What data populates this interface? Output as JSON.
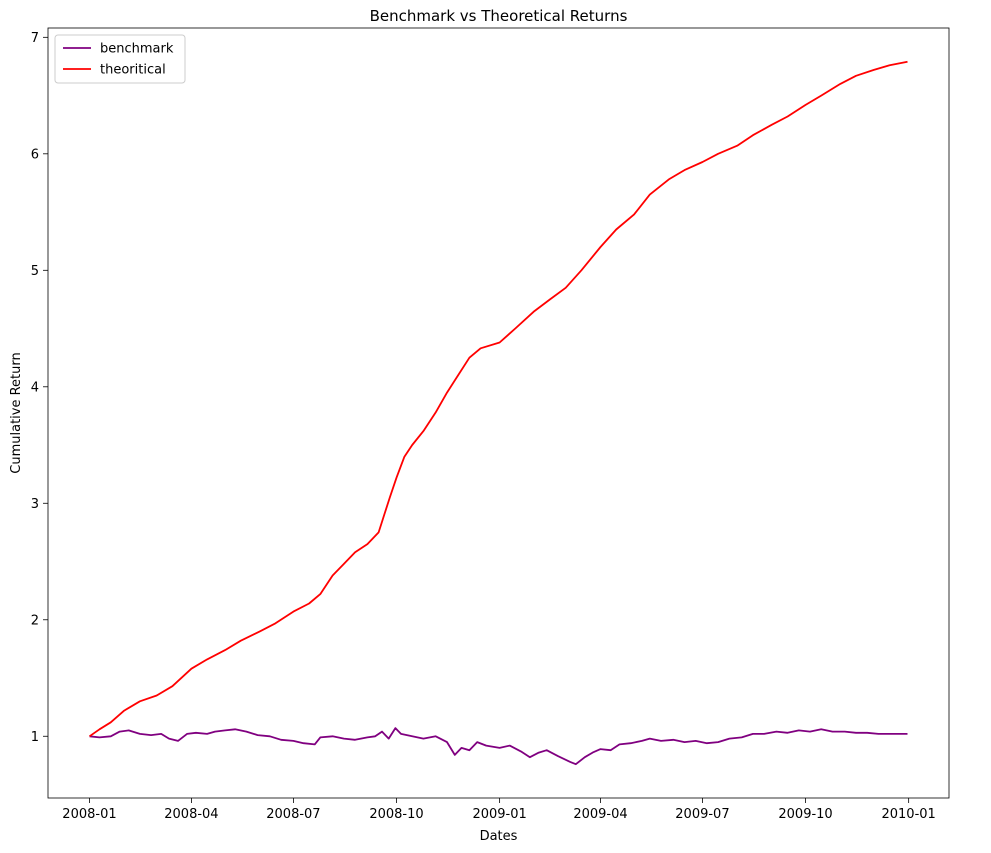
{
  "chart_data": {
    "type": "line",
    "title": "Benchmark vs Theoretical Returns",
    "xlabel": "Dates",
    "ylabel": "Cumulative Return",
    "x_axis": "date",
    "xlim": [
      "2007-11-25",
      "2010-02-06"
    ],
    "ylim": [
      0.47,
      7.08
    ],
    "x_ticks": [
      "2008-01",
      "2008-04",
      "2008-07",
      "2008-10",
      "2009-01",
      "2009-04",
      "2009-07",
      "2009-10",
      "2010-01"
    ],
    "y_ticks": [
      1,
      2,
      3,
      4,
      5,
      6,
      7
    ],
    "grid": false,
    "legend_position": "top-left",
    "series": [
      {
        "name": "benchmark",
        "color": "#800080",
        "points": [
          [
            "2008-01-01",
            1.0
          ],
          [
            "2008-01-10",
            0.99
          ],
          [
            "2008-01-20",
            1.0
          ],
          [
            "2008-01-28",
            1.04
          ],
          [
            "2008-02-05",
            1.05
          ],
          [
            "2008-02-15",
            1.02
          ],
          [
            "2008-02-25",
            1.01
          ],
          [
            "2008-03-05",
            1.02
          ],
          [
            "2008-03-12",
            0.98
          ],
          [
            "2008-03-20",
            0.96
          ],
          [
            "2008-03-28",
            1.02
          ],
          [
            "2008-04-05",
            1.03
          ],
          [
            "2008-04-15",
            1.02
          ],
          [
            "2008-04-22",
            1.04
          ],
          [
            "2008-05-01",
            1.05
          ],
          [
            "2008-05-10",
            1.06
          ],
          [
            "2008-05-20",
            1.04
          ],
          [
            "2008-05-30",
            1.01
          ],
          [
            "2008-06-10",
            1.0
          ],
          [
            "2008-06-20",
            0.97
          ],
          [
            "2008-07-01",
            0.96
          ],
          [
            "2008-07-10",
            0.94
          ],
          [
            "2008-07-20",
            0.93
          ],
          [
            "2008-07-25",
            0.99
          ],
          [
            "2008-08-05",
            1.0
          ],
          [
            "2008-08-15",
            0.98
          ],
          [
            "2008-08-25",
            0.97
          ],
          [
            "2008-09-05",
            0.99
          ],
          [
            "2008-09-12",
            1.0
          ],
          [
            "2008-09-18",
            1.04
          ],
          [
            "2008-09-24",
            0.98
          ],
          [
            "2008-09-30",
            1.07
          ],
          [
            "2008-10-05",
            1.02
          ],
          [
            "2008-10-15",
            1.0
          ],
          [
            "2008-10-25",
            0.98
          ],
          [
            "2008-11-05",
            1.0
          ],
          [
            "2008-11-15",
            0.95
          ],
          [
            "2008-11-22",
            0.84
          ],
          [
            "2008-11-28",
            0.9
          ],
          [
            "2008-12-05",
            0.88
          ],
          [
            "2008-12-12",
            0.95
          ],
          [
            "2008-12-20",
            0.92
          ],
          [
            "2009-01-01",
            0.9
          ],
          [
            "2009-01-10",
            0.92
          ],
          [
            "2009-01-20",
            0.87
          ],
          [
            "2009-01-28",
            0.82
          ],
          [
            "2009-02-05",
            0.86
          ],
          [
            "2009-02-12",
            0.88
          ],
          [
            "2009-02-22",
            0.83
          ],
          [
            "2009-03-05",
            0.78
          ],
          [
            "2009-03-10",
            0.76
          ],
          [
            "2009-03-18",
            0.82
          ],
          [
            "2009-03-25",
            0.86
          ],
          [
            "2009-04-01",
            0.89
          ],
          [
            "2009-04-10",
            0.88
          ],
          [
            "2009-04-18",
            0.93
          ],
          [
            "2009-04-28",
            0.94
          ],
          [
            "2009-05-08",
            0.96
          ],
          [
            "2009-05-15",
            0.98
          ],
          [
            "2009-05-25",
            0.96
          ],
          [
            "2009-06-05",
            0.97
          ],
          [
            "2009-06-15",
            0.95
          ],
          [
            "2009-06-25",
            0.96
          ],
          [
            "2009-07-05",
            0.94
          ],
          [
            "2009-07-15",
            0.95
          ],
          [
            "2009-07-25",
            0.98
          ],
          [
            "2009-08-05",
            0.99
          ],
          [
            "2009-08-15",
            1.02
          ],
          [
            "2009-08-25",
            1.02
          ],
          [
            "2009-09-05",
            1.04
          ],
          [
            "2009-09-15",
            1.03
          ],
          [
            "2009-09-25",
            1.05
          ],
          [
            "2009-10-05",
            1.04
          ],
          [
            "2009-10-15",
            1.06
          ],
          [
            "2009-10-25",
            1.04
          ],
          [
            "2009-11-05",
            1.04
          ],
          [
            "2009-11-15",
            1.03
          ],
          [
            "2009-11-25",
            1.03
          ],
          [
            "2009-12-05",
            1.02
          ],
          [
            "2009-12-15",
            1.02
          ],
          [
            "2009-12-31",
            1.02
          ]
        ]
      },
      {
        "name": "theoritical",
        "color": "#ff0000",
        "points": [
          [
            "2008-01-01",
            1.0
          ],
          [
            "2008-01-10",
            1.06
          ],
          [
            "2008-01-20",
            1.12
          ],
          [
            "2008-02-01",
            1.22
          ],
          [
            "2008-02-15",
            1.3
          ],
          [
            "2008-03-01",
            1.35
          ],
          [
            "2008-03-15",
            1.43
          ],
          [
            "2008-04-01",
            1.58
          ],
          [
            "2008-04-15",
            1.66
          ],
          [
            "2008-05-01",
            1.74
          ],
          [
            "2008-05-15",
            1.82
          ],
          [
            "2008-06-01",
            1.9
          ],
          [
            "2008-06-15",
            1.97
          ],
          [
            "2008-07-01",
            2.07
          ],
          [
            "2008-07-15",
            2.14
          ],
          [
            "2008-07-25",
            2.22
          ],
          [
            "2008-08-05",
            2.38
          ],
          [
            "2008-08-15",
            2.48
          ],
          [
            "2008-08-25",
            2.58
          ],
          [
            "2008-09-05",
            2.65
          ],
          [
            "2008-09-15",
            2.75
          ],
          [
            "2008-09-20",
            2.9
          ],
          [
            "2008-09-25",
            3.05
          ],
          [
            "2008-10-01",
            3.22
          ],
          [
            "2008-10-08",
            3.4
          ],
          [
            "2008-10-15",
            3.5
          ],
          [
            "2008-10-25",
            3.62
          ],
          [
            "2008-11-05",
            3.78
          ],
          [
            "2008-11-15",
            3.95
          ],
          [
            "2008-11-25",
            4.1
          ],
          [
            "2008-12-05",
            4.25
          ],
          [
            "2008-12-15",
            4.33
          ],
          [
            "2009-01-01",
            4.38
          ],
          [
            "2009-01-15",
            4.5
          ],
          [
            "2009-02-01",
            4.65
          ],
          [
            "2009-02-15",
            4.75
          ],
          [
            "2009-03-01",
            4.85
          ],
          [
            "2009-03-15",
            5.0
          ],
          [
            "2009-04-01",
            5.2
          ],
          [
            "2009-04-15",
            5.35
          ],
          [
            "2009-05-01",
            5.48
          ],
          [
            "2009-05-15",
            5.65
          ],
          [
            "2009-06-01",
            5.78
          ],
          [
            "2009-06-15",
            5.86
          ],
          [
            "2009-07-01",
            5.93
          ],
          [
            "2009-07-15",
            6.0
          ],
          [
            "2009-08-01",
            6.07
          ],
          [
            "2009-08-15",
            6.16
          ],
          [
            "2009-09-01",
            6.25
          ],
          [
            "2009-09-15",
            6.32
          ],
          [
            "2009-10-01",
            6.42
          ],
          [
            "2009-10-15",
            6.5
          ],
          [
            "2009-11-01",
            6.6
          ],
          [
            "2009-11-15",
            6.67
          ],
          [
            "2009-12-01",
            6.72
          ],
          [
            "2009-12-15",
            6.76
          ],
          [
            "2009-12-31",
            6.79
          ]
        ]
      }
    ]
  }
}
